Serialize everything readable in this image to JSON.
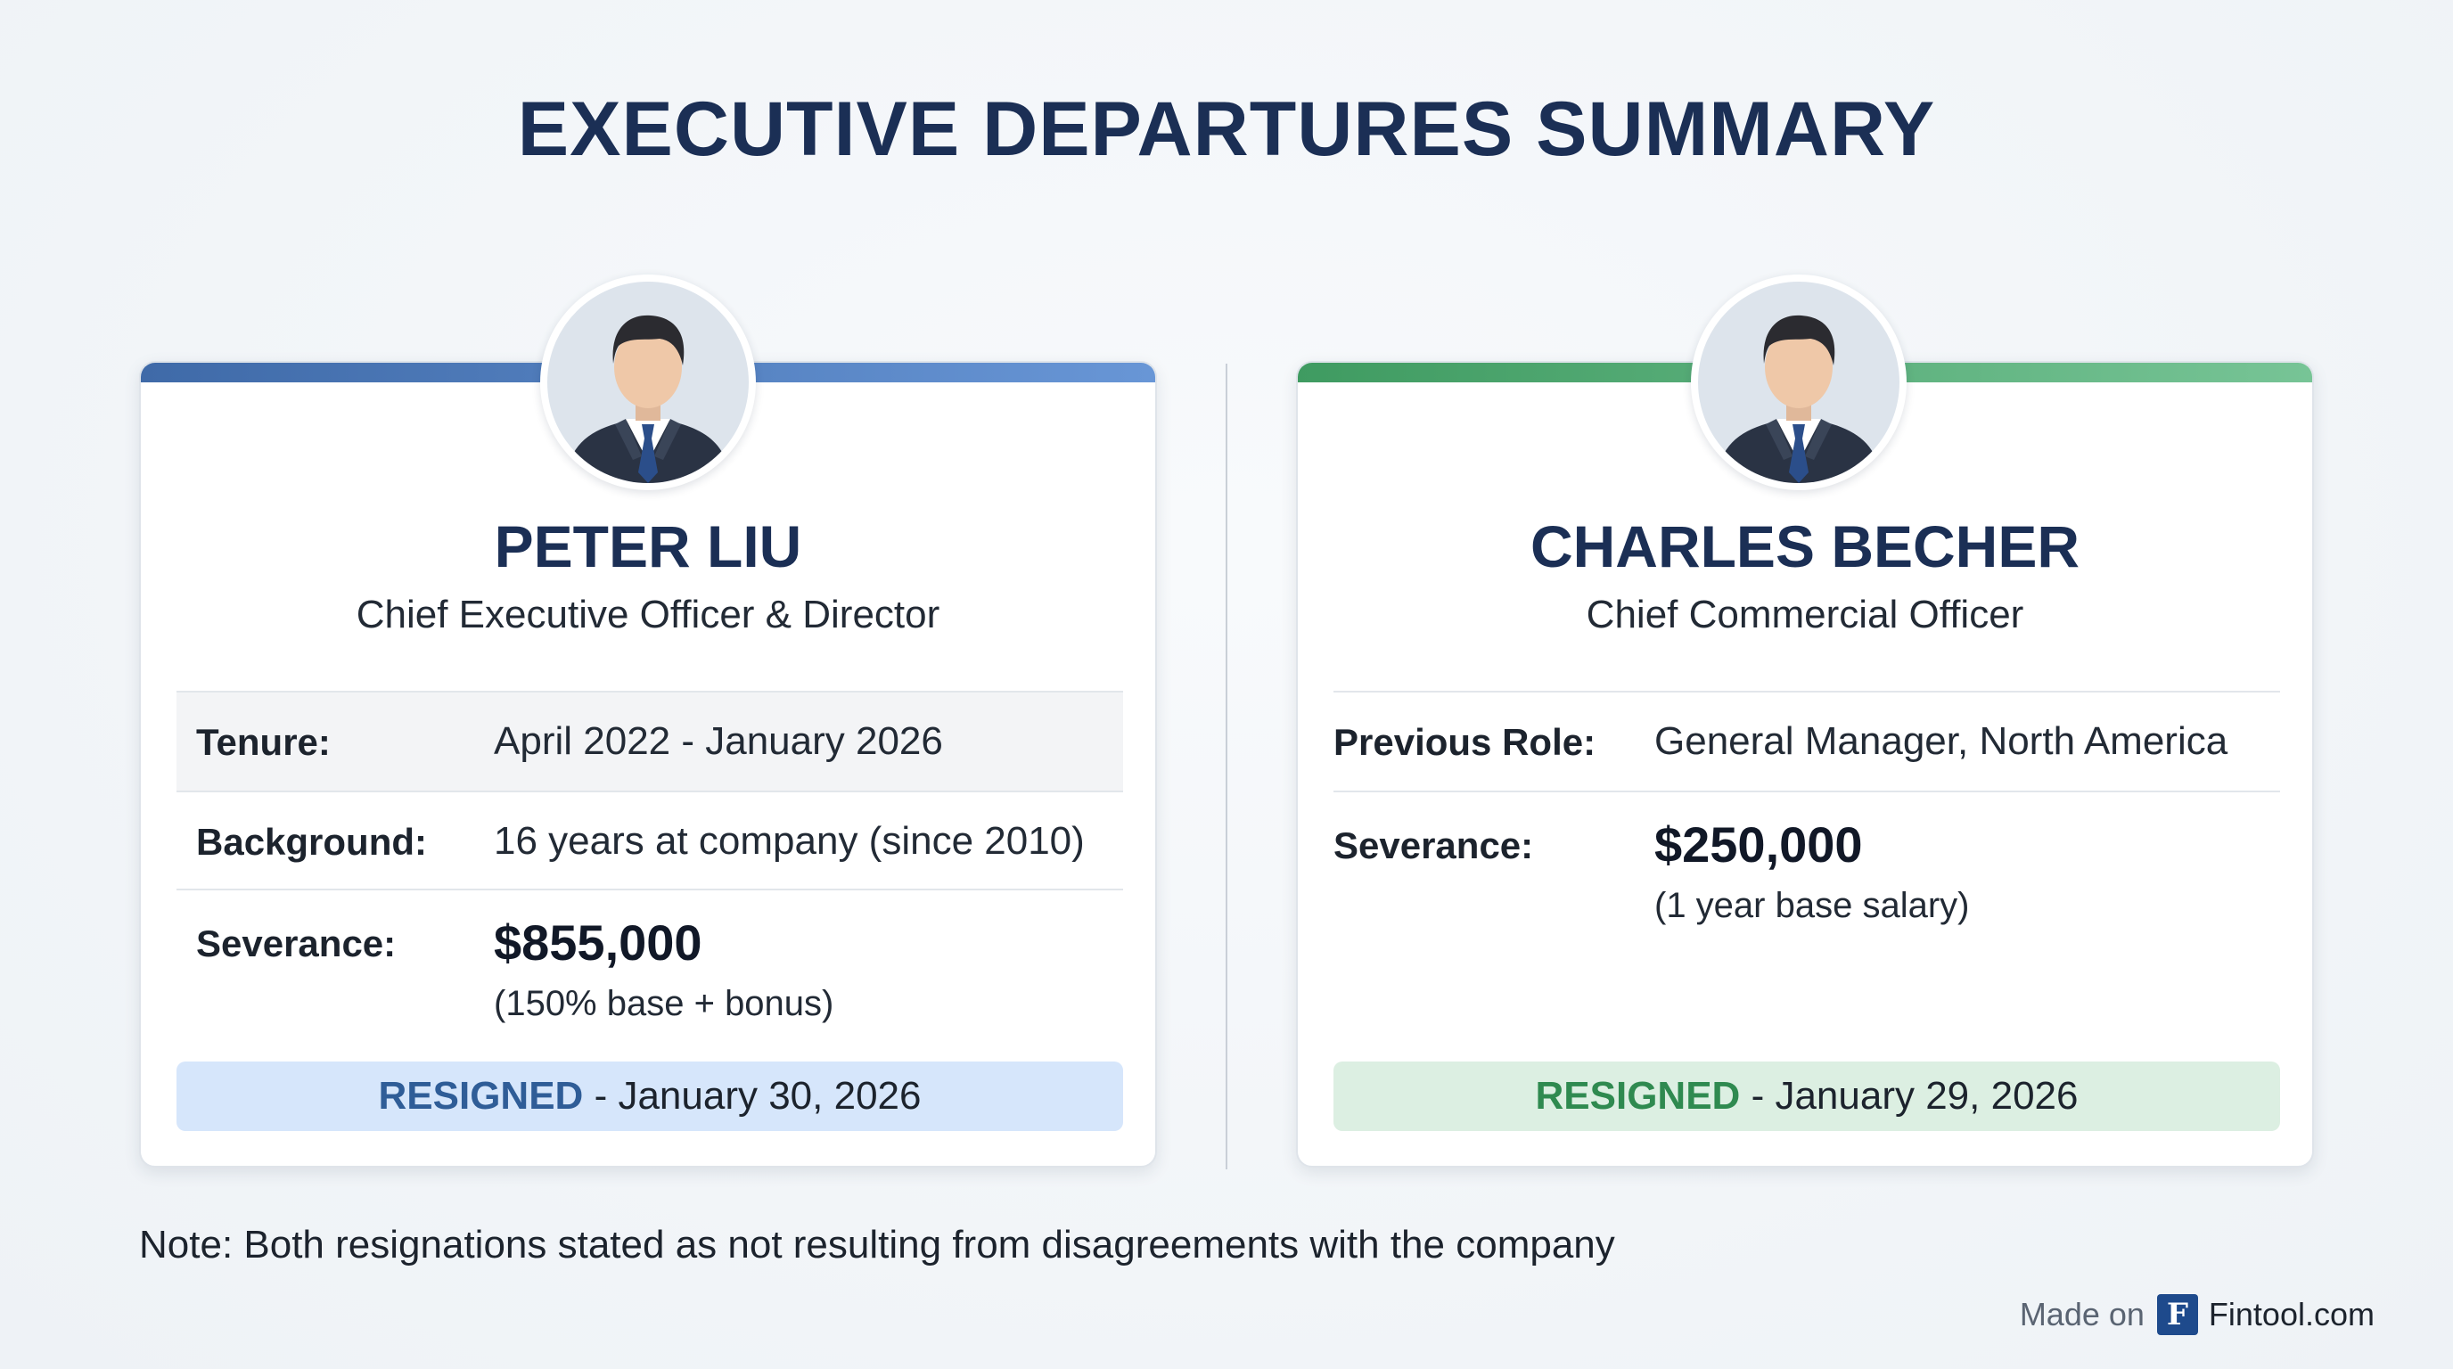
{
  "title": "EXECUTIVE DEPARTURES SUMMARY",
  "executives": [
    {
      "name": "PETER LIU",
      "role": "Chief Executive Officer & Director",
      "rows": [
        {
          "label": "Tenure:",
          "value": "April 2022 - January 2026"
        },
        {
          "label": "Background:",
          "value": "16 years at company (since 2010)"
        },
        {
          "label": "Severance:",
          "value": "$855,000",
          "detail": "(150% base + bonus)"
        }
      ],
      "status_word": "RESIGNED",
      "status_sep": "-",
      "status_date": "January 30, 2026",
      "accent": "#4a78bd"
    },
    {
      "name": "CHARLES BECHER",
      "role": "Chief Commercial Officer",
      "rows": [
        {
          "label": "Previous Role:",
          "value": "General Manager, North America"
        },
        {
          "label": "Severance:",
          "value": "$250,000",
          "detail": "(1 year base salary)"
        }
      ],
      "status_word": "RESIGNED",
      "status_sep": "-",
      "status_date": "January 29, 2026",
      "accent": "#4fae72"
    }
  ],
  "note": "Note: Both resignations stated as not resulting from disagreements with the company",
  "footer": {
    "made_on": "Made on",
    "logo_letter": "F",
    "brand": "Fintool.com"
  },
  "icons": {
    "avatar": "person-avatar-icon",
    "logo": "fintool-logo-icon"
  }
}
